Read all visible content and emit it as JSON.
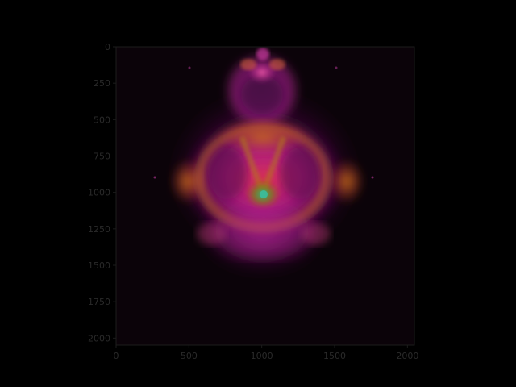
{
  "chart_data": {
    "type": "heatmap",
    "title": "",
    "xlabel": "",
    "ylabel": "",
    "xlim": [
      0,
      2048
    ],
    "ylim": [
      2048,
      0
    ],
    "x_ticks": [
      0,
      500,
      1000,
      1500,
      2000
    ],
    "y_ticks": [
      0,
      250,
      500,
      750,
      1000,
      1250,
      1500,
      1750,
      2000
    ],
    "x_tick_labels": [
      "0",
      "500",
      "1000",
      "1500",
      "2000"
    ],
    "y_tick_labels": [
      "0",
      "250",
      "500",
      "750",
      "1000",
      "1250",
      "1500",
      "1750",
      "2000"
    ],
    "grid": false,
    "legend": "none",
    "image_subject": "buddhabrot",
    "colors": {
      "background": "#000000",
      "plot_background": "#0b0309",
      "axes": "#1c1c1c",
      "tick_label": "#2a2a2a",
      "palette": [
        "#0b0309",
        "#5a0f52",
        "#b0209a",
        "#e0309a",
        "#e84a4a",
        "#c86a10",
        "#6f7a10",
        "#1f9a7a"
      ]
    }
  }
}
